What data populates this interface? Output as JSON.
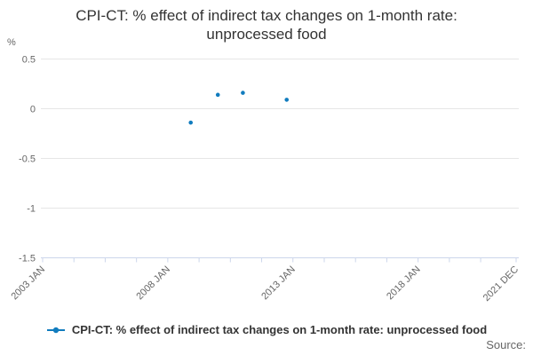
{
  "title": {
    "line1": "CPI-CT: % effect of indirect tax changes on 1-month rate:",
    "line2": "unprocessed food"
  },
  "legend": {
    "label": "CPI-CT: % effect of indirect tax changes on 1-month rate: unprocessed food"
  },
  "source_label": "Source:",
  "colors": {
    "series": "#117CBE",
    "grid": "#E6E6E6",
    "axis": "#CCD6EB",
    "tick_text": "#666666",
    "title_text": "#333333",
    "legend_text": "#333333",
    "source_text": "#666666"
  },
  "chart_data": {
    "type": "scatter",
    "title": "CPI-CT: % effect of indirect tax changes on 1-month rate: unprocessed food",
    "xlabel": "",
    "ylabel": "%",
    "ylim": [
      -1.5,
      0.5
    ],
    "grid": true,
    "legend_position": "bottom",
    "yticks": [
      {
        "value": 0.5,
        "label": "0.5"
      },
      {
        "value": 0,
        "label": "0"
      },
      {
        "value": -0.5,
        "label": "-0.5"
      },
      {
        "value": -1,
        "label": "-1"
      },
      {
        "value": -1.5,
        "label": "-1.5"
      }
    ],
    "x_axis": {
      "start_label": "2003 JAN",
      "end_label": "2021 DEC",
      "total_months": 228,
      "minor_tick_interval_months": 15,
      "labeled_ticks": [
        {
          "month_index": 0,
          "label": "2003 JAN"
        },
        {
          "month_index": 60,
          "label": "2008 JAN"
        },
        {
          "month_index": 120,
          "label": "2013 JAN"
        },
        {
          "month_index": 180,
          "label": "2018 JAN"
        },
        {
          "month_index": 227,
          "label": "2021 DEC"
        }
      ]
    },
    "series": [
      {
        "name": "CPI-CT: % effect of indirect tax changes on 1-month rate: unprocessed food",
        "points": [
          {
            "x_label": "2008 DEC",
            "month_index": 71,
            "value": -0.14
          },
          {
            "x_label": "2010 JAN",
            "month_index": 84,
            "value": 0.14
          },
          {
            "x_label": "2011 JAN",
            "month_index": 96,
            "value": 0.16
          },
          {
            "x_label": "2012 OCT",
            "month_index": 117,
            "value": 0.09
          }
        ]
      }
    ]
  }
}
